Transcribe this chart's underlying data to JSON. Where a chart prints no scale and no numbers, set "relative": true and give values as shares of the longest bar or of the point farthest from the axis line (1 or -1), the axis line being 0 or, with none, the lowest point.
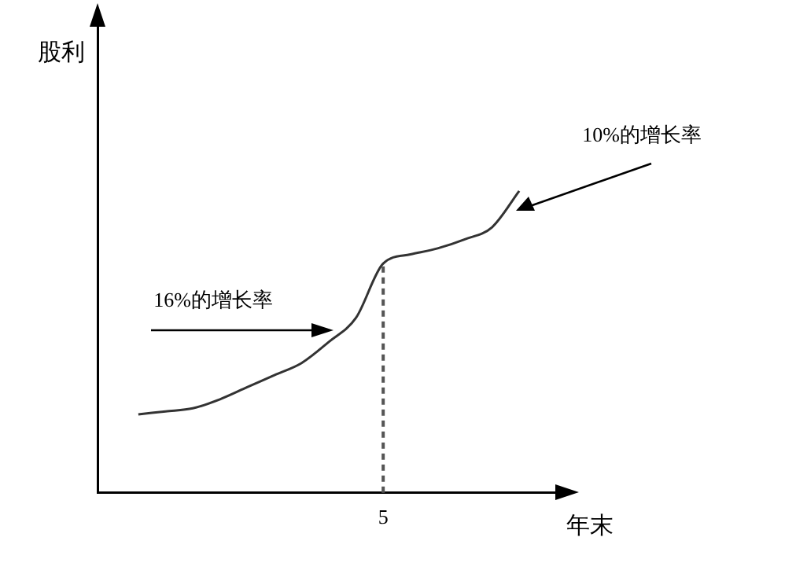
{
  "chart_data": {
    "type": "line",
    "relative": true,
    "xlabel": "年末",
    "grid": false,
    "legend": false,
    "marker": "none",
    "line_style": "solid",
    "categories": [
      null,
      null,
      null,
      null,
      null,
      null,
      null,
      null,
      null,
      null,
      null,
      null,
      null,
      null,
      null,
      null,
      null
    ],
    "series": [
      {
        "color": "#333333",
        "values": [
          null,
          0.26,
          0.27,
          0.28,
          0.31,
          0.35,
          0.39,
          0.43,
          0.5,
          0.58,
          0.76,
          0.79,
          0.81,
          0.84,
          0.88,
          1,
          null
        ]
      }
    ],
    "ref_lines": [
      {
        "axis": "x",
        "label": "5",
        "color": "#555555",
        "line_style": "dashed"
      }
    ],
    "annotations": [
      "16%的增长率",
      "10%的增长率",
      "股利"
    ]
  }
}
